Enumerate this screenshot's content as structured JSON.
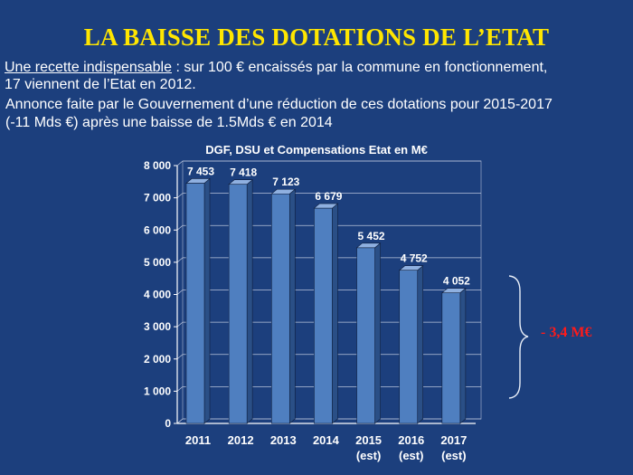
{
  "slide": {
    "title": "LA BAISSE DES DOTATIONS DE L’ETAT",
    "line1_underlined": "Une recette indispensable",
    "line1_rest": " : sur 100 € encaissés par la commune en fonctionnement,",
    "line2": "17 viennent de l’Etat en 2012.",
    "line3": "Annonce faite par le Gouvernement d’une réduction de ces dotations pour 2015-2017",
    "line4": "(-11 Mds €) après une baisse de 1.5Mds € en 2014",
    "annotation": "- 3,4 M€"
  },
  "colors": {
    "background": "#1c3f7d",
    "title": "#ffe600",
    "bar_front": "#4f7fc0",
    "bar_side": "#2a4f86",
    "bar_top": "#8fb0e0",
    "annotation": "#ff1a1a"
  },
  "chart_data": {
    "type": "bar",
    "title": "DGF, DSU et Compensations Etat en M€",
    "categories": [
      "2011",
      "2012",
      "2013",
      "2014",
      "2015\n(est)",
      "2016\n(est)",
      "2017\n(est)"
    ],
    "values": [
      7453,
      7418,
      7123,
      6679,
      5452,
      4752,
      4052
    ],
    "data_labels": [
      "7 453",
      "7 418",
      "7 123",
      "6 679",
      "5 452",
      "4 752",
      "4 052"
    ],
    "ylim": [
      0,
      8000
    ],
    "yticks": [
      0,
      1000,
      2000,
      3000,
      4000,
      5000,
      6000,
      7000,
      8000
    ],
    "ytick_labels": [
      "0",
      "1 000",
      "2 000",
      "3 000",
      "4 000",
      "5 000",
      "6 000",
      "7 000",
      "8 000"
    ],
    "grid": true,
    "legend": "none",
    "xlabel": "",
    "ylabel": ""
  }
}
